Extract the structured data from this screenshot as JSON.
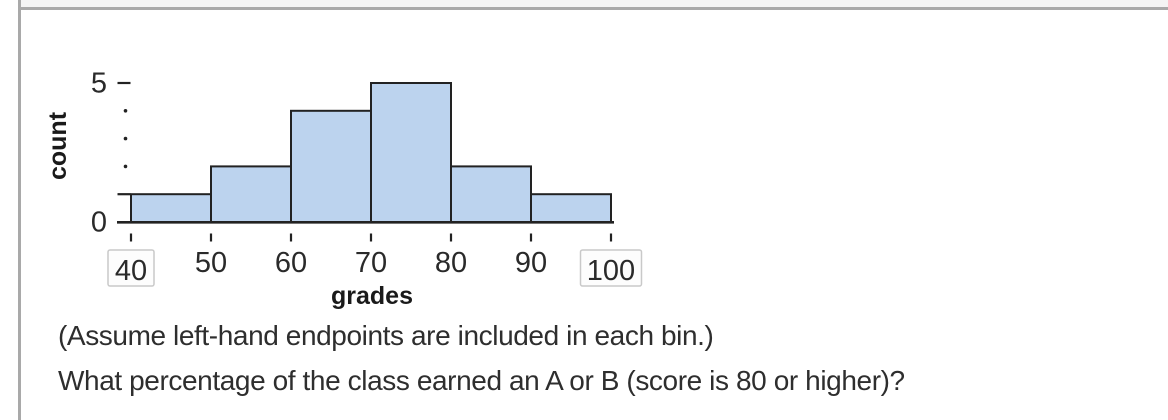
{
  "frame": {
    "top_strip_color": "#f4f4f4",
    "border_color": "#a9a9a9"
  },
  "chart_data": {
    "type": "bar",
    "subtype": "histogram",
    "title": "",
    "xlabel": "grades",
    "ylabel": "count",
    "bin_edges": [
      40,
      50,
      60,
      70,
      80,
      90,
      100
    ],
    "counts": [
      1,
      2,
      4,
      5,
      2,
      1
    ],
    "ylim": [
      0,
      5
    ],
    "xlim": [
      40,
      100
    ],
    "grid": false,
    "legend": false,
    "y_labeled_ticks": [
      0,
      5
    ],
    "y_dash_ticks": [
      1,
      5
    ],
    "y_dot_ticks": [
      2,
      3,
      4
    ],
    "x_tick_labels": [
      "40",
      "50",
      "60",
      "70",
      "80",
      "90",
      "100"
    ],
    "boxed_x_tick_labels": [
      "40",
      "100"
    ],
    "bar_fill": "#bcd3ee",
    "bar_stroke": "#222222",
    "axis_color": "#222222",
    "tick_label_color": "#2a2a2a",
    "box_border_color": "#c9c9c9"
  },
  "question": {
    "note": "(Assume left-hand endpoints are included in each bin.)",
    "prompt": "What percentage of the class earned an A or B (score is 80 or higher)?"
  }
}
